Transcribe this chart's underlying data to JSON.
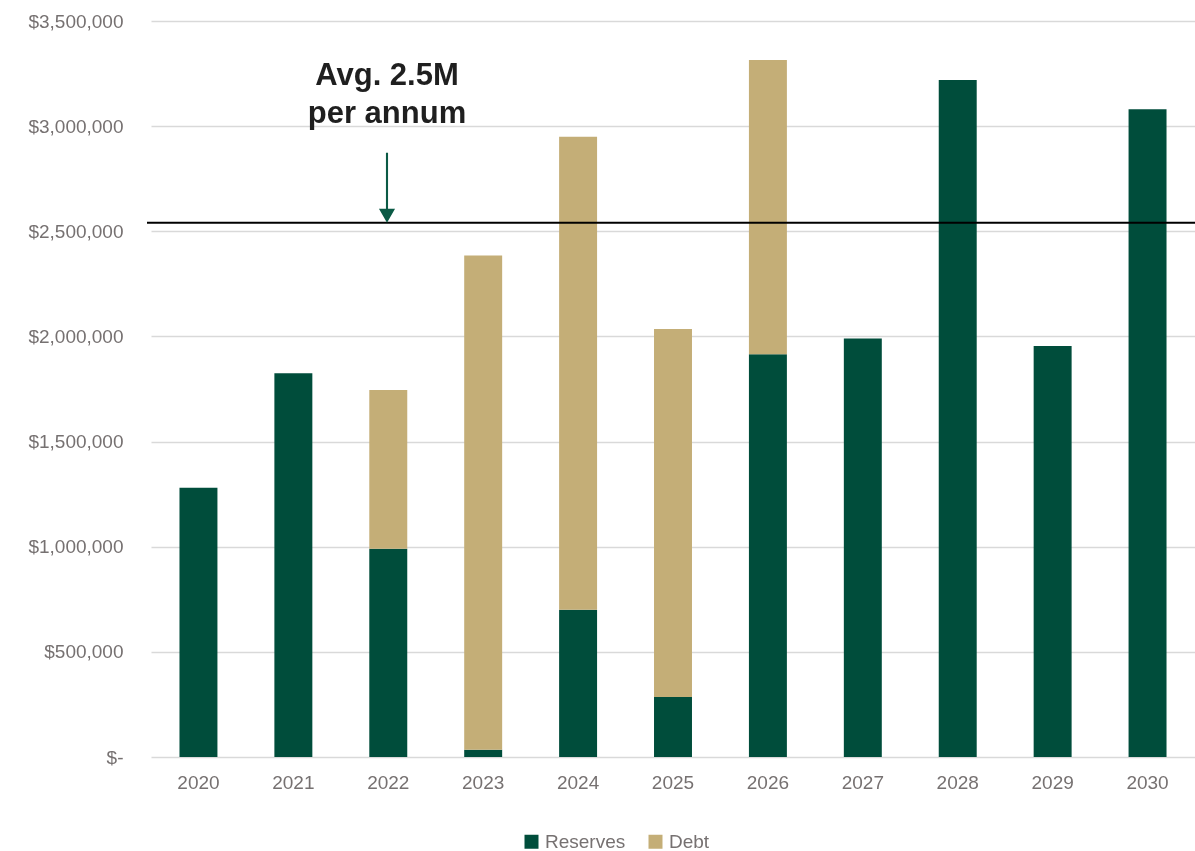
{
  "chart_data": {
    "type": "bar",
    "categories": [
      "2020",
      "2021",
      "2022",
      "2023",
      "2024",
      "2025",
      "2026",
      "2027",
      "2028",
      "2029",
      "2030"
    ],
    "series": [
      {
        "name": "Reserves",
        "color": "#004d3b",
        "values": [
          1280000,
          1825000,
          990000,
          35000,
          700000,
          285000,
          1915000,
          1990000,
          3220000,
          1955000,
          3080000
        ]
      },
      {
        "name": "Debt",
        "color": "#c4ae77",
        "values": [
          null,
          null,
          755000,
          2350000,
          2250000,
          1750000,
          1400000,
          null,
          null,
          null,
          null
        ]
      }
    ],
    "stacked": true,
    "ylim": [
      0,
      3500000
    ],
    "yticks": [
      {
        "value": 0,
        "label": "$-"
      },
      {
        "value": 500000,
        "label": "$500,000"
      },
      {
        "value": 1000000,
        "label": "$1,000,000"
      },
      {
        "value": 1500000,
        "label": "$1,500,000"
      },
      {
        "value": 2000000,
        "label": "$2,000,000"
      },
      {
        "value": 2500000,
        "label": "$2,500,000"
      },
      {
        "value": 3000000,
        "label": "$3,000,000"
      },
      {
        "value": 3500000,
        "label": "$3,500,000"
      }
    ],
    "grid": "y",
    "legend": "bottom",
    "ref_lines": [
      {
        "axis": "y",
        "value": 2540000,
        "label": "Avg. 2.5M\nper annum",
        "color": "#000000"
      }
    ]
  }
}
